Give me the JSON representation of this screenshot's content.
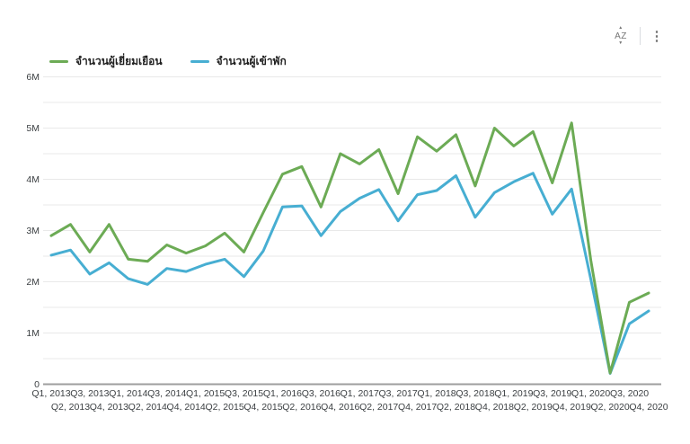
{
  "toolbar": {
    "icons": [
      {
        "name": "sort-az-icon",
        "glyph": "AZ"
      },
      {
        "name": "more-options-icon",
        "glyph": "⋮"
      }
    ]
  },
  "legend": {
    "items": [
      {
        "label": "จำนวนผู้เยี่ยมเยือน",
        "color": "#6cab55"
      },
      {
        "label": "จำนวนผู้เข้าพัก",
        "color": "#47aed2"
      }
    ]
  },
  "y_axis": {
    "tick_labels": [
      "0",
      "1M",
      "2M",
      "3M",
      "4M",
      "5M",
      "6M"
    ]
  },
  "chart_data": {
    "type": "line",
    "title": "",
    "xlabel": "",
    "ylabel": "",
    "values_unit": "millions",
    "ylim": [
      0,
      6
    ],
    "ytick_label_step": 1,
    "ygrid_step": 0.5,
    "grid": true,
    "legend_position": "top-left",
    "categories": [
      "Q1, 2013",
      "Q2, 2013",
      "Q3, 2013",
      "Q4, 2013",
      "Q1, 2014",
      "Q2, 2014",
      "Q3, 2014",
      "Q4, 2014",
      "Q1, 2015",
      "Q2, 2015",
      "Q3, 2015",
      "Q4, 2015",
      "Q1, 2016",
      "Q2, 2016",
      "Q3, 2016",
      "Q4, 2016",
      "Q1, 2017",
      "Q2, 2017",
      "Q3, 2017",
      "Q4, 2017",
      "Q1, 2018",
      "Q2, 2018",
      "Q3, 2018",
      "Q4, 2018",
      "Q1, 2019",
      "Q2, 2019",
      "Q3, 2019",
      "Q4, 2019",
      "Q1, 2020",
      "Q2, 2020",
      "Q3, 2020",
      "Q4, 2020"
    ],
    "series": [
      {
        "name": "จำนวนผู้เยี่ยมเยือน",
        "color": "#6cab55",
        "values": [
          2.9,
          3.12,
          2.58,
          3.12,
          2.44,
          2.4,
          2.72,
          2.56,
          2.7,
          2.95,
          2.58,
          3.35,
          4.1,
          4.25,
          3.46,
          4.5,
          4.3,
          4.58,
          3.72,
          4.83,
          4.55,
          4.87,
          3.87,
          5.0,
          4.65,
          4.93,
          3.93,
          5.1,
          2.42,
          0.22,
          1.6,
          1.78
        ]
      },
      {
        "name": "จำนวนผู้เข้าพัก",
        "color": "#47aed2",
        "values": [
          2.52,
          2.62,
          2.15,
          2.37,
          2.06,
          1.95,
          2.26,
          2.2,
          2.34,
          2.44,
          2.1,
          2.6,
          3.46,
          3.48,
          2.9,
          3.37,
          3.63,
          3.8,
          3.19,
          3.7,
          3.78,
          4.07,
          3.26,
          3.74,
          3.95,
          4.12,
          3.32,
          3.81,
          2.05,
          0.21,
          1.18,
          1.43
        ]
      }
    ]
  }
}
